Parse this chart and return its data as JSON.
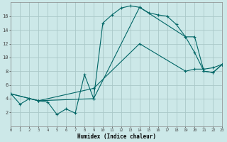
{
  "xlabel": "Humidex (Indice chaleur)",
  "bg_color": "#cce8e8",
  "line_color": "#006666",
  "grid_color": "#aac8c8",
  "axis_color": "#888888",
  "line1_x": [
    0,
    1,
    2,
    3,
    4,
    5,
    6,
    7,
    8,
    9,
    10,
    11,
    12,
    13,
    14,
    15,
    16,
    17,
    18,
    19,
    20,
    21,
    22,
    23
  ],
  "line1_y": [
    4.7,
    3.2,
    4.0,
    3.7,
    3.5,
    1.7,
    2.5,
    1.9,
    7.5,
    4.0,
    15.0,
    16.2,
    17.2,
    17.5,
    17.3,
    16.5,
    16.2,
    16.0,
    14.8,
    13.0,
    10.7,
    8.0,
    7.8,
    9.0
  ],
  "line2_x": [
    0,
    3,
    9,
    14,
    19,
    20,
    21,
    22,
    23
  ],
  "line2_y": [
    4.7,
    3.7,
    4.0,
    17.3,
    13.0,
    13.0,
    8.0,
    7.8,
    9.0
  ],
  "line3_x": [
    0,
    3,
    9,
    14,
    19,
    20,
    21,
    22,
    23
  ],
  "line3_y": [
    4.7,
    3.7,
    5.5,
    12.0,
    8.0,
    8.3,
    8.3,
    8.5,
    9.0
  ],
  "xlim": [
    0,
    23
  ],
  "ylim": [
    0,
    18
  ],
  "xticks": [
    0,
    1,
    2,
    3,
    4,
    5,
    6,
    7,
    8,
    9,
    10,
    11,
    12,
    13,
    14,
    15,
    16,
    17,
    18,
    19,
    20,
    21,
    22,
    23
  ],
  "yticks": [
    2,
    4,
    6,
    8,
    10,
    12,
    14,
    16
  ]
}
